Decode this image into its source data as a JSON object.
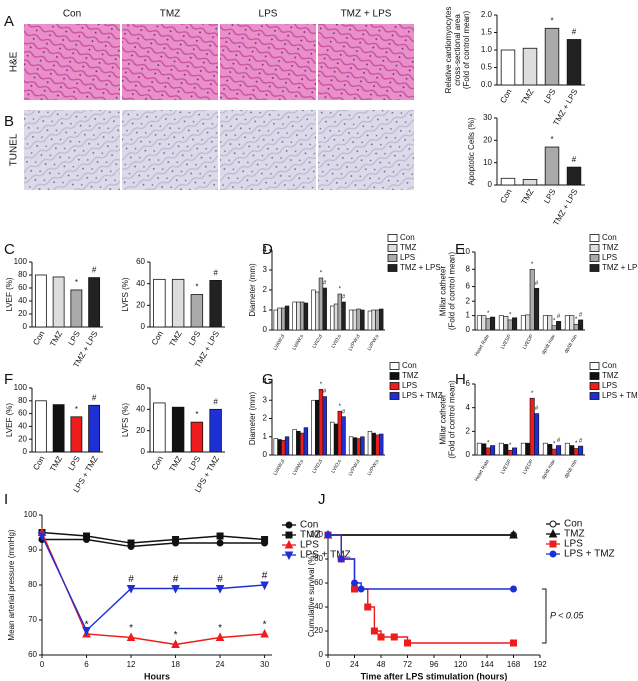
{
  "chart_data": [
    {
      "type": "bar",
      "panel": "A",
      "row_label": "H&E",
      "image_columns": [
        "Con",
        "TMZ",
        "LPS",
        "TMZ + LPS"
      ],
      "ylabel": [
        "Relative cardiomyocytes",
        "cross-sectional area",
        "(Fold of control mean)"
      ],
      "categories": [
        "Con",
        "TMZ",
        "LPS",
        "TMZ + LPS"
      ],
      "values": [
        1.0,
        1.05,
        1.62,
        1.3
      ],
      "colors": [
        "#ffffff",
        "#dddddd",
        "#aaaaaa",
        "#222222"
      ],
      "marks": [
        null,
        null,
        "*",
        "#"
      ],
      "ylim": [
        0,
        2
      ],
      "yticks": [
        {
          "value": 0,
          "label": "0.0"
        },
        {
          "value": 0.5,
          "label": "0.5"
        },
        {
          "value": 1,
          "label": "1.0"
        },
        {
          "value": 1.5,
          "label": "1.5"
        },
        {
          "value": 2,
          "label": "2.0"
        }
      ]
    },
    {
      "type": "bar",
      "panel": "B",
      "row_label": "TUNEL",
      "ylabel": "Apoptotic Cells (%)",
      "categories": [
        "Con",
        "TMZ",
        "LPS",
        "TMZ + LPS"
      ],
      "values": [
        3,
        2.5,
        17,
        8
      ],
      "colors": [
        "#ffffff",
        "#dddddd",
        "#aaaaaa",
        "#222222"
      ],
      "marks": [
        null,
        null,
        "*",
        "#"
      ],
      "ylim": [
        0,
        30
      ],
      "yticks": [
        0,
        10,
        20,
        30
      ]
    },
    {
      "type": "bar",
      "panel": "C",
      "ylabel": "LVEF (%)",
      "categories": [
        "Con",
        "TMZ",
        "LPS",
        "TMZ + LPS"
      ],
      "values": [
        80,
        77,
        57,
        76
      ],
      "colors": [
        "#ffffff",
        "#dddddd",
        "#aaaaaa",
        "#222222"
      ],
      "marks": [
        null,
        null,
        "*",
        "#"
      ],
      "ylim": [
        0,
        100
      ],
      "yticks": [
        0,
        20,
        40,
        60,
        80,
        100
      ]
    },
    {
      "type": "bar",
      "ylabel": "LVFS (%)",
      "categories": [
        "Con",
        "TMZ",
        "LPS",
        "TMZ + LPS"
      ],
      "values": [
        44,
        44,
        30,
        43
      ],
      "colors": [
        "#ffffff",
        "#dddddd",
        "#aaaaaa",
        "#222222"
      ],
      "marks": [
        null,
        null,
        "*",
        "#"
      ],
      "ylim": [
        0,
        60
      ],
      "yticks": [
        0,
        20,
        40,
        60
      ]
    },
    {
      "type": "bar",
      "panel": "D",
      "ylabel": "Diameter (mm)",
      "categories": [
        "LVAW;d",
        "LVAW;s",
        "LVID;d",
        "LVID;s",
        "LVPW;d",
        "LVPW;s"
      ],
      "series": [
        {
          "name": "Con",
          "color": "#ffffff",
          "values": [
            1.0,
            1.4,
            2.0,
            1.2,
            1.0,
            0.95
          ]
        },
        {
          "name": "TMZ",
          "color": "#dddddd",
          "values": [
            1.1,
            1.4,
            1.9,
            1.3,
            1.0,
            1.0
          ]
        },
        {
          "name": "LPS",
          "color": "#aaaaaa",
          "values": [
            1.1,
            1.4,
            2.6,
            1.8,
            1.05,
            1.0
          ],
          "marks": [
            null,
            null,
            "*",
            "*",
            null,
            null
          ]
        },
        {
          "name": "TMZ + LPS",
          "color": "#222222",
          "values": [
            1.2,
            1.35,
            2.1,
            1.4,
            1.0,
            1.05
          ],
          "marks": [
            null,
            null,
            "#",
            "#",
            null,
            null
          ]
        }
      ],
      "ylim": [
        0,
        4
      ],
      "yticks": [
        0,
        1,
        2,
        3,
        4
      ]
    },
    {
      "type": "bar",
      "panel": "E",
      "ylabel": [
        "Millar catheter",
        "(Fold of control mean)"
      ],
      "categories": [
        "Heart Rate",
        "LVESP",
        "LVEDP",
        "dp/dt max",
        "dp/dt min"
      ],
      "series": [
        {
          "name": "Con",
          "color": "#ffffff",
          "values": [
            1.0,
            1.0,
            1.0,
            1.0,
            1.0
          ]
        },
        {
          "name": "TMZ",
          "color": "#dddddd",
          "values": [
            1.0,
            0.95,
            1.05,
            1.0,
            1.0
          ]
        },
        {
          "name": "LPS",
          "color": "#aaaaaa",
          "values": [
            0.8,
            0.7,
            8.0,
            0.3,
            0.4
          ],
          "marks": [
            "*",
            "*",
            "*",
            "*",
            "*"
          ]
        },
        {
          "name": "TMZ + LPS",
          "color": "#222222",
          "values": [
            0.9,
            0.85,
            5.8,
            0.6,
            0.7
          ],
          "marks": [
            null,
            null,
            "#",
            "#",
            "#"
          ]
        }
      ],
      "ylim": [
        0,
        10
      ],
      "axis_break": [
        2,
        5
      ],
      "yticks": [
        0,
        1,
        2,
        6,
        8,
        10
      ]
    },
    {
      "type": "bar",
      "panel": "F",
      "ylabel": "LVEF (%)",
      "categories": [
        "Con",
        "TMZ",
        "LPS",
        "LPS + TMZ"
      ],
      "values": [
        80,
        74,
        55,
        73
      ],
      "colors": [
        "#ffffff",
        "#111111",
        "#ee1c1c",
        "#1f2fd6"
      ],
      "marks": [
        null,
        null,
        "*",
        "#"
      ],
      "ylim": [
        0,
        100
      ],
      "yticks": [
        0,
        20,
        40,
        60,
        80,
        100
      ]
    },
    {
      "type": "bar",
      "ylabel": "LVFS (%)",
      "categories": [
        "Con",
        "TMZ",
        "LPS",
        "LPS + TMZ"
      ],
      "values": [
        46,
        42,
        28,
        40
      ],
      "colors": [
        "#ffffff",
        "#111111",
        "#ee1c1c",
        "#1f2fd6"
      ],
      "marks": [
        null,
        null,
        "*",
        "#"
      ],
      "ylim": [
        0,
        60
      ],
      "yticks": [
        0,
        20,
        40,
        60
      ]
    },
    {
      "type": "bar",
      "panel": "G",
      "ylabel": "Diameter (mm)",
      "categories": [
        "LVAW;d",
        "LVAW;s",
        "LVID;d",
        "LVID;s",
        "LVPW;d",
        "LVPW;s"
      ],
      "series": [
        {
          "name": "Con",
          "color": "#ffffff",
          "values": [
            0.9,
            1.4,
            3.0,
            1.8,
            1.0,
            1.3
          ]
        },
        {
          "name": "TMZ",
          "color": "#111111",
          "values": [
            0.85,
            1.3,
            3.0,
            1.7,
            0.95,
            1.2
          ]
        },
        {
          "name": "LPS",
          "color": "#ee1c1c",
          "values": [
            0.8,
            1.2,
            3.6,
            2.4,
            0.9,
            1.1
          ],
          "marks": [
            null,
            null,
            "*",
            "*",
            null,
            null
          ]
        },
        {
          "name": "LPS + TMZ",
          "color": "#1f2fd6",
          "values": [
            1.0,
            1.5,
            3.2,
            2.1,
            1.0,
            1.15
          ],
          "marks": [
            null,
            null,
            "#",
            "#",
            null,
            null
          ]
        }
      ],
      "ylim": [
        0,
        4
      ],
      "yticks": [
        0,
        1,
        2,
        3,
        4
      ]
    },
    {
      "type": "bar",
      "panel": "H",
      "ylabel": [
        "Millar catheter",
        "(Fold of control mean)"
      ],
      "categories": [
        "Heart Rate",
        "LVESP",
        "LVEDP",
        "dp/dt max",
        "dp/dt min"
      ],
      "series": [
        {
          "name": "Con",
          "color": "#ffffff",
          "values": [
            1.0,
            1.0,
            1.0,
            1.0,
            1.0
          ]
        },
        {
          "name": "TMZ",
          "color": "#111111",
          "values": [
            0.95,
            0.9,
            1.0,
            0.9,
            0.8
          ]
        },
        {
          "name": "LPS",
          "color": "#ee1c1c",
          "values": [
            0.6,
            0.4,
            4.8,
            0.5,
            0.55
          ],
          "marks": [
            "*",
            "*",
            "*",
            "*",
            "*"
          ]
        },
        {
          "name": "LPS + TMZ",
          "color": "#1f2fd6",
          "values": [
            0.8,
            0.6,
            3.5,
            0.8,
            0.75
          ],
          "marks": [
            null,
            null,
            "#",
            "#",
            "#"
          ]
        }
      ],
      "ylim": [
        0,
        6
      ],
      "yticks": [
        0,
        2,
        4,
        6
      ]
    },
    {
      "type": "line",
      "panel": "I",
      "ylabel": "Mean arterial pressure (mmHg)",
      "xlabel": "Hours",
      "x": [
        0,
        6,
        12,
        18,
        24,
        30
      ],
      "series": [
        {
          "name": "Con",
          "color": "#111111",
          "marker": "circle",
          "values": [
            93,
            93,
            91,
            92,
            92,
            92
          ]
        },
        {
          "name": "TMZ",
          "color": "#111111",
          "marker": "square",
          "values": [
            95,
            94,
            92,
            93,
            94,
            93
          ]
        },
        {
          "name": "LPS",
          "color": "#ee1c1c",
          "marker": "triangle",
          "values": [
            95,
            66,
            65,
            63,
            65,
            66
          ],
          "marks": [
            null,
            "*",
            "*",
            "*",
            "*",
            "*"
          ]
        },
        {
          "name": "LPS + TMZ",
          "color": "#1f2fd6",
          "marker": "triangle-down",
          "values": [
            94,
            67,
            79,
            79,
            79,
            80
          ],
          "marks": [
            null,
            null,
            "#",
            "#",
            "#",
            "#"
          ]
        }
      ],
      "xlim": [
        0,
        31
      ],
      "xticks": [
        0,
        6,
        12,
        18,
        24,
        30
      ],
      "ylim": [
        60,
        100
      ],
      "yticks": [
        60,
        70,
        80,
        90,
        100
      ]
    },
    {
      "type": "line",
      "panel": "J",
      "drawstyle": "steps-post",
      "ylabel": "Cumulative survival (%)",
      "xlabel": "Time after LPS stimulation (hours)",
      "annotation": "P < 0.05",
      "series": [
        {
          "name": "Con",
          "color": "#111111",
          "marker": "circle-open",
          "x": [
            0,
            168
          ],
          "values": [
            100,
            100
          ]
        },
        {
          "name": "TMZ",
          "color": "#111111",
          "marker": "triangle",
          "x": [
            0,
            168
          ],
          "values": [
            100,
            100
          ]
        },
        {
          "name": "LPS",
          "color": "#ee1c1c",
          "marker": "square",
          "x": [
            0,
            12,
            24,
            36,
            42,
            48,
            60,
            72,
            168
          ],
          "values": [
            100,
            80,
            55,
            40,
            20,
            15,
            15,
            10,
            10
          ]
        },
        {
          "name": "LPS + TMZ",
          "color": "#1f2fd6",
          "marker": "circle",
          "x": [
            0,
            12,
            24,
            30,
            168
          ],
          "values": [
            100,
            80,
            60,
            55,
            55
          ]
        }
      ],
      "xlim": [
        0,
        192
      ],
      "xticks": [
        0,
        24,
        48,
        72,
        96,
        120,
        144,
        168,
        192
      ],
      "ylim": [
        0,
        100
      ],
      "yticks": [
        0,
        20,
        40,
        60,
        80,
        100
      ]
    }
  ]
}
